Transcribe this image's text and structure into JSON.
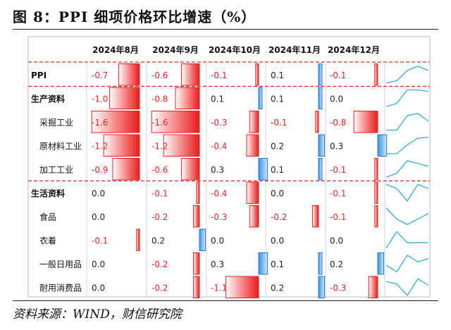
{
  "figure": {
    "title": "图 8：PPI 细项价格环比增速（%）",
    "source": "资料来源：WIND，财信研究院"
  },
  "colors": {
    "positive": "#3399ee",
    "negative": "#ee2222",
    "sparkline": "#33aadd",
    "divider": "#e02020"
  },
  "chart_data": {
    "type": "table",
    "columns": [
      "2024年8月",
      "2024年9月",
      "2024年10月",
      "2024年11月",
      "2024年12月"
    ],
    "rows": [
      {
        "label": "PPI",
        "level": 0,
        "values": [
          -0.7,
          -0.6,
          -0.1,
          0.1,
          -0.1
        ]
      },
      {
        "label": "生产资料",
        "level": 0,
        "values": [
          -1.0,
          -0.8,
          0.1,
          0.1,
          0.0
        ]
      },
      {
        "label": "采掘工业",
        "level": 1,
        "values": [
          -1.6,
          -1.6,
          -0.3,
          -0.1,
          -0.8
        ]
      },
      {
        "label": "原材料工业",
        "level": 1,
        "values": [
          -1.2,
          -1.2,
          -0.4,
          0.2,
          0.3
        ]
      },
      {
        "label": "加工工业",
        "level": 1,
        "values": [
          -0.9,
          -0.6,
          0.3,
          0.1,
          -0.1
        ]
      },
      {
        "label": "生活资料",
        "level": 0,
        "values": [
          0.0,
          -0.1,
          -0.4,
          0.0,
          -0.1
        ]
      },
      {
        "label": "食品",
        "level": 1,
        "values": [
          0.0,
          -0.2,
          -0.3,
          -0.2,
          -0.1
        ]
      },
      {
        "label": "衣着",
        "level": 1,
        "values": [
          -0.1,
          0.2,
          0.0,
          0.0,
          0.0
        ]
      },
      {
        "label": "一般日用品",
        "level": 1,
        "values": [
          0.0,
          -0.2,
          0.3,
          0.1,
          0.2
        ]
      },
      {
        "label": "耐用消费品",
        "level": 1,
        "values": [
          0.0,
          -0.2,
          -1.1,
          0.2,
          -0.3
        ]
      }
    ]
  }
}
